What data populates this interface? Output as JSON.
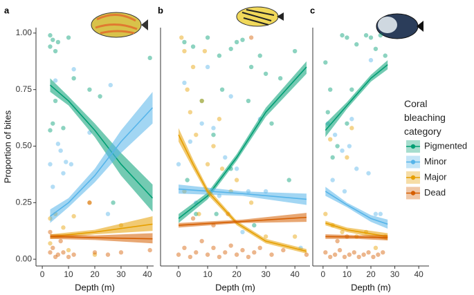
{
  "chart_data": [
    {
      "type": "scatter",
      "panel_label": "a",
      "xlabel": "Depth (m)",
      "ylabel": "Proportion of bites",
      "xlim": [
        -2.4,
        42.4
      ],
      "ylim": [
        -0.03,
        1.024
      ],
      "xticks": [
        0,
        10,
        20,
        30,
        40
      ],
      "yticks": [
        {
          "value": 0,
          "label": "0.00"
        },
        {
          "value": 0.25,
          "label": "0.25"
        },
        {
          "value": 0.5,
          "label": "0.50"
        },
        {
          "value": 0.75,
          "label": "0.75"
        },
        {
          "value": 1,
          "label": "1.00"
        }
      ],
      "legend": {
        "title": "Coral bleaching category"
      },
      "series": [
        {
          "name": "Pigmented",
          "color": "#009e73",
          "x": [
            3,
            4,
            3,
            5,
            4,
            3,
            5,
            8,
            12,
            18,
            22,
            27,
            41,
            10,
            6
          ],
          "y": [
            0.99,
            0.97,
            0.94,
            0.92,
            0.6,
            0.57,
            0.7,
            0.58,
            0.8,
            0.75,
            0.72,
            0.25,
            0.89,
            0.98,
            0.96
          ],
          "fit_x": [
            3,
            10,
            20,
            30,
            42
          ],
          "fit": [
            0.77,
            0.7,
            0.57,
            0.42,
            0.27
          ],
          "fit_lower": [
            0.74,
            0.68,
            0.54,
            0.37,
            0.21
          ],
          "fit_upper": [
            0.8,
            0.72,
            0.6,
            0.47,
            0.33
          ]
        },
        {
          "name": "Minor",
          "color": "#56b4e9",
          "x": [
            3,
            4,
            6,
            7,
            9,
            11,
            12,
            18,
            26,
            5,
            8,
            25
          ],
          "y": [
            0.42,
            0.32,
            0.51,
            0.48,
            0.43,
            0.42,
            0.84,
            0.56,
            0.77,
            0.79,
            0.38,
            0.2
          ],
          "fit_x": [
            3,
            10,
            20,
            30,
            42
          ],
          "fit": [
            0.19,
            0.25,
            0.37,
            0.52,
            0.67
          ],
          "fit_lower": [
            0.16,
            0.23,
            0.34,
            0.47,
            0.6
          ],
          "fit_upper": [
            0.22,
            0.27,
            0.4,
            0.57,
            0.74
          ]
        },
        {
          "name": "Major",
          "color": "#e69f00",
          "x": [
            3,
            5,
            8,
            12,
            18,
            30,
            3,
            10,
            20
          ],
          "y": [
            0.18,
            0.2,
            0.14,
            0.19,
            0.25,
            0.15,
            0.07,
            0.04,
            0.02
          ],
          "fit_x": [
            3,
            20,
            42
          ],
          "fit": [
            0.1,
            0.12,
            0.155
          ],
          "fit_lower": [
            0.09,
            0.11,
            0.125
          ],
          "fit_upper": [
            0.11,
            0.13,
            0.19
          ]
        },
        {
          "name": "Dead",
          "color": "#d55e00",
          "x": [
            3,
            4,
            5,
            6,
            8,
            10,
            12,
            18,
            20,
            25,
            30,
            41,
            3,
            7
          ],
          "y": [
            0.03,
            0.05,
            0.01,
            0.02,
            0.03,
            0.01,
            0.02,
            0.25,
            0.03,
            0.02,
            0.03,
            0.04,
            0.12,
            0.08
          ],
          "fit_x": [
            3,
            20,
            42
          ],
          "fit": [
            0.1,
            0.095,
            0.09
          ],
          "fit_lower": [
            0.09,
            0.085,
            0.07
          ],
          "fit_upper": [
            0.11,
            0.105,
            0.115
          ]
        }
      ]
    },
    {
      "type": "scatter",
      "panel_label": "b",
      "xlabel": "Depth (m)",
      "xlim": [
        -6.2,
        45.2
      ],
      "ylim": [
        -0.03,
        1.024
      ],
      "xticks": [
        0,
        10,
        20,
        30,
        40
      ],
      "series": [
        {
          "x": [
            2,
            5,
            10,
            14,
            18,
            20,
            22,
            25,
            28,
            30,
            35,
            40,
            8,
            15,
            24,
            32,
            12,
            3,
            18,
            38,
            6,
            26,
            13
          ],
          "y": [
            0.96,
            0.94,
            0.98,
            0.9,
            0.93,
            0.96,
            0.97,
            0.85,
            0.9,
            0.82,
            0.8,
            0.92,
            0.7,
            0.75,
            0.7,
            0.6,
            0.55,
            0.35,
            0.4,
            0.35,
            0.2,
            0.15,
            0.2
          ],
          "fit_x": [
            0,
            10,
            20,
            30,
            44
          ],
          "fit": [
            0.18,
            0.28,
            0.45,
            0.65,
            0.85
          ],
          "fit_lower": [
            0.16,
            0.265,
            0.435,
            0.63,
            0.82
          ],
          "fit_upper": [
            0.2,
            0.295,
            0.465,
            0.67,
            0.875
          ]
        },
        {
          "x": [
            0,
            4,
            8,
            12,
            16,
            20,
            24,
            28,
            2,
            10,
            18,
            30,
            6,
            14,
            22,
            42
          ],
          "y": [
            0.42,
            0.52,
            0.6,
            0.58,
            0.45,
            0.4,
            0.3,
            0.62,
            0.78,
            0.85,
            0.72,
            0.3,
            0.25,
            0.28,
            0.12,
            0.05
          ],
          "fit_x": [
            0,
            22,
            44
          ],
          "fit": [
            0.31,
            0.29,
            0.265
          ],
          "fit_lower": [
            0.29,
            0.28,
            0.24
          ],
          "fit_upper": [
            0.33,
            0.3,
            0.29
          ]
        },
        {
          "x": [
            1,
            2,
            3,
            4,
            5,
            6,
            8,
            10,
            12,
            15,
            18,
            2,
            7,
            20,
            25,
            14,
            9,
            30,
            40
          ],
          "y": [
            0.98,
            0.92,
            0.75,
            0.65,
            0.85,
            0.55,
            0.7,
            0.42,
            0.5,
            0.4,
            0.3,
            0.3,
            0.2,
            0.35,
            0.25,
            0.62,
            0.92,
            0.1,
            0.1
          ],
          "fit_x": [
            0,
            5,
            10,
            20,
            30,
            44
          ],
          "fit": [
            0.55,
            0.42,
            0.3,
            0.16,
            0.08,
            0.035
          ],
          "fit_lower": [
            0.52,
            0.4,
            0.285,
            0.15,
            0.07,
            0.025
          ],
          "fit_upper": [
            0.58,
            0.44,
            0.315,
            0.17,
            0.09,
            0.045
          ]
        },
        {
          "x": [
            0,
            2,
            4,
            6,
            8,
            10,
            12,
            14,
            16,
            18,
            20,
            22,
            24,
            26,
            28,
            32,
            36,
            44,
            5,
            12,
            25,
            17
          ],
          "y": [
            0.02,
            0.05,
            0.01,
            0.03,
            0.08,
            0.02,
            0.05,
            0.01,
            0.03,
            0.06,
            0.02,
            0.04,
            0.01,
            0.03,
            0.05,
            0.02,
            0.04,
            0.02,
            0.18,
            0.15,
            0.98,
            0.2
          ],
          "fit_x": [
            0,
            22,
            44
          ],
          "fit": [
            0.15,
            0.167,
            0.185
          ],
          "fit_lower": [
            0.14,
            0.16,
            0.165
          ],
          "fit_upper": [
            0.16,
            0.175,
            0.205
          ]
        }
      ]
    },
    {
      "type": "scatter",
      "panel_label": "c",
      "xlabel": "Depth (m)",
      "xlim": [
        -4.3,
        44.3
      ],
      "ylim": [
        -0.03,
        1.024
      ],
      "xticks": [
        0,
        10,
        20,
        30,
        40
      ],
      "series": [
        {
          "x": [
            1,
            8,
            10,
            14,
            18,
            20,
            24,
            22,
            3,
            12,
            2,
            10,
            6,
            4,
            26
          ],
          "y": [
            0.87,
            0.99,
            0.98,
            0.95,
            0.99,
            0.98,
            0.99,
            0.93,
            0.75,
            0.75,
            0.65,
            0.6,
            0.5,
            0.45,
            0.9
          ],
          "fit_x": [
            1,
            10,
            20,
            27
          ],
          "fit": [
            0.57,
            0.68,
            0.8,
            0.86
          ],
          "fit_lower": [
            0.54,
            0.665,
            0.785,
            0.84
          ],
          "fit_upper": [
            0.6,
            0.695,
            0.815,
            0.88
          ]
        },
        {
          "x": [
            2,
            5,
            8,
            11,
            14,
            19,
            4,
            9,
            22,
            24,
            12,
            20
          ],
          "y": [
            0.6,
            0.55,
            0.48,
            0.5,
            0.4,
            0.38,
            0.35,
            0.3,
            0.2,
            0.2,
            0.62,
            0.88
          ],
          "fit_x": [
            1,
            10,
            20,
            27
          ],
          "fit": [
            0.3,
            0.24,
            0.18,
            0.155
          ],
          "fit_lower": [
            0.28,
            0.23,
            0.165,
            0.135
          ],
          "fit_upper": [
            0.32,
            0.25,
            0.195,
            0.175
          ]
        },
        {
          "x": [
            1,
            4,
            8,
            10,
            14,
            18,
            3,
            12,
            22,
            26
          ],
          "y": [
            0.2,
            0.15,
            0.12,
            0.45,
            0.1,
            0.12,
            0.53,
            0.58,
            0.05,
            0.1
          ],
          "fit_x": [
            1,
            10,
            27
          ],
          "fit": [
            0.16,
            0.13,
            0.1
          ],
          "fit_lower": [
            0.15,
            0.12,
            0.085
          ],
          "fit_upper": [
            0.17,
            0.14,
            0.115
          ]
        },
        {
          "x": [
            1,
            3,
            5,
            7,
            9,
            11,
            13,
            15,
            17,
            19,
            21,
            23,
            25,
            6,
            10
          ],
          "y": [
            0.03,
            0.01,
            0.02,
            0.04,
            0.01,
            0.02,
            0.03,
            0.01,
            0.02,
            0.03,
            0.01,
            0.02,
            0.03,
            0.08,
            0.1
          ],
          "fit_x": [
            1,
            14,
            27
          ],
          "fit": [
            0.1,
            0.098,
            0.095
          ],
          "fit_lower": [
            0.09,
            0.09,
            0.083
          ],
          "fit_upper": [
            0.11,
            0.106,
            0.107
          ]
        }
      ]
    }
  ]
}
